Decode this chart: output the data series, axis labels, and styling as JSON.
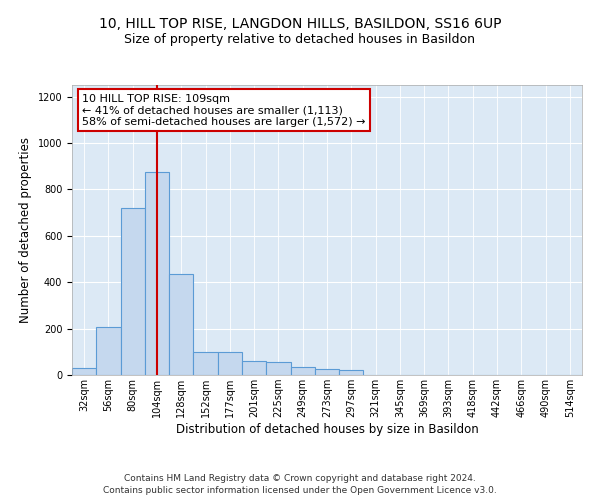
{
  "title_line1": "10, HILL TOP RISE, LANGDON HILLS, BASILDON, SS16 6UP",
  "title_line2": "Size of property relative to detached houses in Basildon",
  "xlabel": "Distribution of detached houses by size in Basildon",
  "ylabel": "Number of detached properties",
  "categories": [
    "32sqm",
    "56sqm",
    "80sqm",
    "104sqm",
    "128sqm",
    "152sqm",
    "177sqm",
    "201sqm",
    "225sqm",
    "249sqm",
    "273sqm",
    "297sqm",
    "321sqm",
    "345sqm",
    "369sqm",
    "393sqm",
    "418sqm",
    "442sqm",
    "466sqm",
    "490sqm",
    "514sqm"
  ],
  "bar_values": [
    30,
    205,
    720,
    875,
    435,
    100,
    100,
    60,
    55,
    35,
    25,
    20,
    0,
    0,
    0,
    0,
    0,
    0,
    0,
    0,
    0
  ],
  "bar_color": "#c5d8ee",
  "bar_edge_color": "#5b9bd5",
  "vline_x": 3.0,
  "vline_color": "#cc0000",
  "annotation_text": "10 HILL TOP RISE: 109sqm\n← 41% of detached houses are smaller (1,113)\n58% of semi-detached houses are larger (1,572) →",
  "annotation_box_color": "#ffffff",
  "annotation_box_edge": "#cc0000",
  "ylim": [
    0,
    1250
  ],
  "yticks": [
    0,
    200,
    400,
    600,
    800,
    1000,
    1200
  ],
  "footer": "Contains HM Land Registry data © Crown copyright and database right 2024.\nContains public sector information licensed under the Open Government Licence v3.0.",
  "plot_bg_color": "#dce9f5",
  "title_fontsize": 10,
  "subtitle_fontsize": 9,
  "axis_label_fontsize": 8.5,
  "tick_fontsize": 7,
  "footer_fontsize": 6.5,
  "ann_fontsize": 8
}
